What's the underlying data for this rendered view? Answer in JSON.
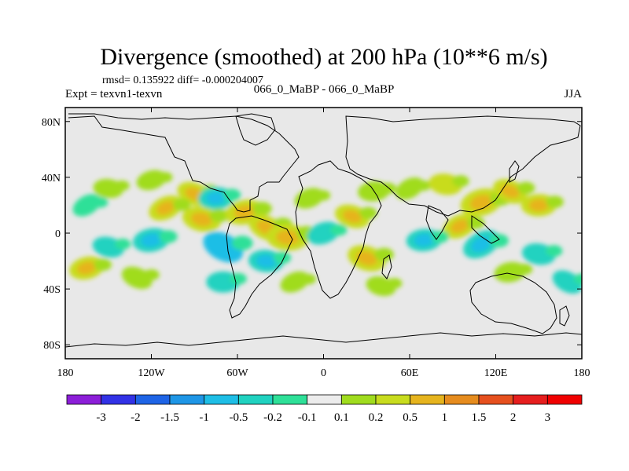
{
  "chart_data": {
    "type": "heatmap",
    "title": "Divergence (smoothed) at 200 hPa (10**6 m/s)",
    "stats_text": "rmsd= 0.135922 diff= -0.000204007",
    "left_label": "Expt = texvn1-texvn",
    "center_label": "066_0_MaBP - 066_0_MaBP",
    "right_label": "JJA",
    "x_axis": {
      "range": [
        -180,
        180
      ],
      "ticks": [
        -180,
        -120,
        -60,
        0,
        60,
        120,
        180
      ],
      "tick_labels": [
        "180",
        "120W",
        "60W",
        "0",
        "60E",
        "120E",
        "180"
      ]
    },
    "y_axis": {
      "range": [
        -90,
        90
      ],
      "ticks": [
        80,
        40,
        0,
        -40,
        -80
      ],
      "tick_labels": [
        "80N",
        "40N",
        "0",
        "40S",
        "80S"
      ]
    },
    "colorbar": {
      "levels": [
        "-3",
        "-2",
        "-1.5",
        "-1",
        "-0.5",
        "-0.2",
        "-0.1",
        "0.1",
        "0.2",
        "0.5",
        "1",
        "1.5",
        "2",
        "3"
      ],
      "colors": [
        "#8c1ed8",
        "#3232e6",
        "#1e64e6",
        "#1e96e6",
        "#1ebee6",
        "#20d2c0",
        "#2ee098",
        "#ececec",
        "#a0dc1e",
        "#c8dc1e",
        "#e6b41e",
        "#e68c1e",
        "#e6501e",
        "#e61e1e",
        "#f00000"
      ]
    },
    "field": {
      "background_value": "0 (between -0.1 and 0.1)",
      "features": [
        {
          "lon": -165,
          "lat": 20,
          "value": -0.15
        },
        {
          "lon": -150,
          "lat": 32,
          "value": 0.15
        },
        {
          "lon": -120,
          "lat": 38,
          "value": 0.15
        },
        {
          "lon": -90,
          "lat": 28,
          "value": 0.3
        },
        {
          "lon": -75,
          "lat": 25,
          "value": -0.3
        },
        {
          "lon": -110,
          "lat": 18,
          "value": 0.3
        },
        {
          "lon": -85,
          "lat": 10,
          "value": 0.4
        },
        {
          "lon": -55,
          "lat": 15,
          "value": 0.4
        },
        {
          "lon": -40,
          "lat": 4,
          "value": 0.35
        },
        {
          "lon": -25,
          "lat": -3,
          "value": 0.5
        },
        {
          "lon": -10,
          "lat": 25,
          "value": 0.15
        },
        {
          "lon": 20,
          "lat": 12,
          "value": 0.3
        },
        {
          "lon": 35,
          "lat": 30,
          "value": 0.2
        },
        {
          "lon": 60,
          "lat": 32,
          "value": 0.15
        },
        {
          "lon": 85,
          "lat": 35,
          "value": 0.25
        },
        {
          "lon": 110,
          "lat": 22,
          "value": 0.5
        },
        {
          "lon": 130,
          "lat": 30,
          "value": 0.3
        },
        {
          "lon": 150,
          "lat": 20,
          "value": 0.3
        },
        {
          "lon": 95,
          "lat": 5,
          "value": 0.3
        },
        {
          "lon": -150,
          "lat": -10,
          "value": -0.2
        },
        {
          "lon": -120,
          "lat": -5,
          "value": -0.35
        },
        {
          "lon": -70,
          "lat": -10,
          "value": -0.5
        },
        {
          "lon": -40,
          "lat": -20,
          "value": -0.3
        },
        {
          "lon": 0,
          "lat": 0,
          "value": -0.25
        },
        {
          "lon": 30,
          "lat": -18,
          "value": 0.4
        },
        {
          "lon": 70,
          "lat": -5,
          "value": -0.3
        },
        {
          "lon": 110,
          "lat": -8,
          "value": -0.4
        },
        {
          "lon": 150,
          "lat": -15,
          "value": -0.25
        },
        {
          "lon": -165,
          "lat": -25,
          "value": 0.3
        },
        {
          "lon": -130,
          "lat": -32,
          "value": 0.2
        },
        {
          "lon": -70,
          "lat": -35,
          "value": -0.25
        },
        {
          "lon": -20,
          "lat": -35,
          "value": 0.15
        },
        {
          "lon": 40,
          "lat": -38,
          "value": 0.15
        },
        {
          "lon": 130,
          "lat": -28,
          "value": 0.2
        },
        {
          "lon": 170,
          "lat": -35,
          "value": -0.2
        }
      ]
    }
  }
}
